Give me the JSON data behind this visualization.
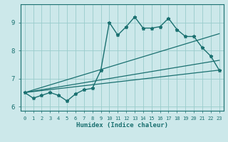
{
  "xlabel": "Humidex (Indice chaleur)",
  "background_color": "#cce8ea",
  "grid_color": "#99cccc",
  "line_color": "#1a7070",
  "xlim": [
    -0.5,
    23.5
  ],
  "ylim": [
    5.85,
    9.65
  ],
  "xticks": [
    0,
    1,
    2,
    3,
    4,
    5,
    6,
    7,
    8,
    9,
    10,
    11,
    12,
    13,
    14,
    15,
    16,
    17,
    18,
    19,
    20,
    21,
    22,
    23
  ],
  "yticks": [
    6,
    7,
    8,
    9
  ],
  "series1_x": [
    0,
    1,
    2,
    3,
    4,
    5,
    6,
    7,
    8,
    9,
    10,
    11,
    12,
    13,
    14,
    15,
    16,
    17,
    18,
    19,
    20,
    21,
    22,
    23
  ],
  "series1_y": [
    6.5,
    6.3,
    6.4,
    6.5,
    6.4,
    6.2,
    6.45,
    6.6,
    6.65,
    7.3,
    9.0,
    8.55,
    8.85,
    9.2,
    8.8,
    8.8,
    8.85,
    9.15,
    8.75,
    8.5,
    8.5,
    8.1,
    7.8,
    7.3
  ],
  "series2_x": [
    0,
    23
  ],
  "series2_y": [
    6.5,
    7.3
  ],
  "series3_x": [
    0,
    23
  ],
  "series3_y": [
    6.5,
    8.6
  ],
  "series4_x": [
    0,
    23
  ],
  "series4_y": [
    6.5,
    7.65
  ],
  "xlabel_fontsize": 6.5,
  "xtick_fontsize": 5.0,
  "ytick_fontsize": 6.5
}
